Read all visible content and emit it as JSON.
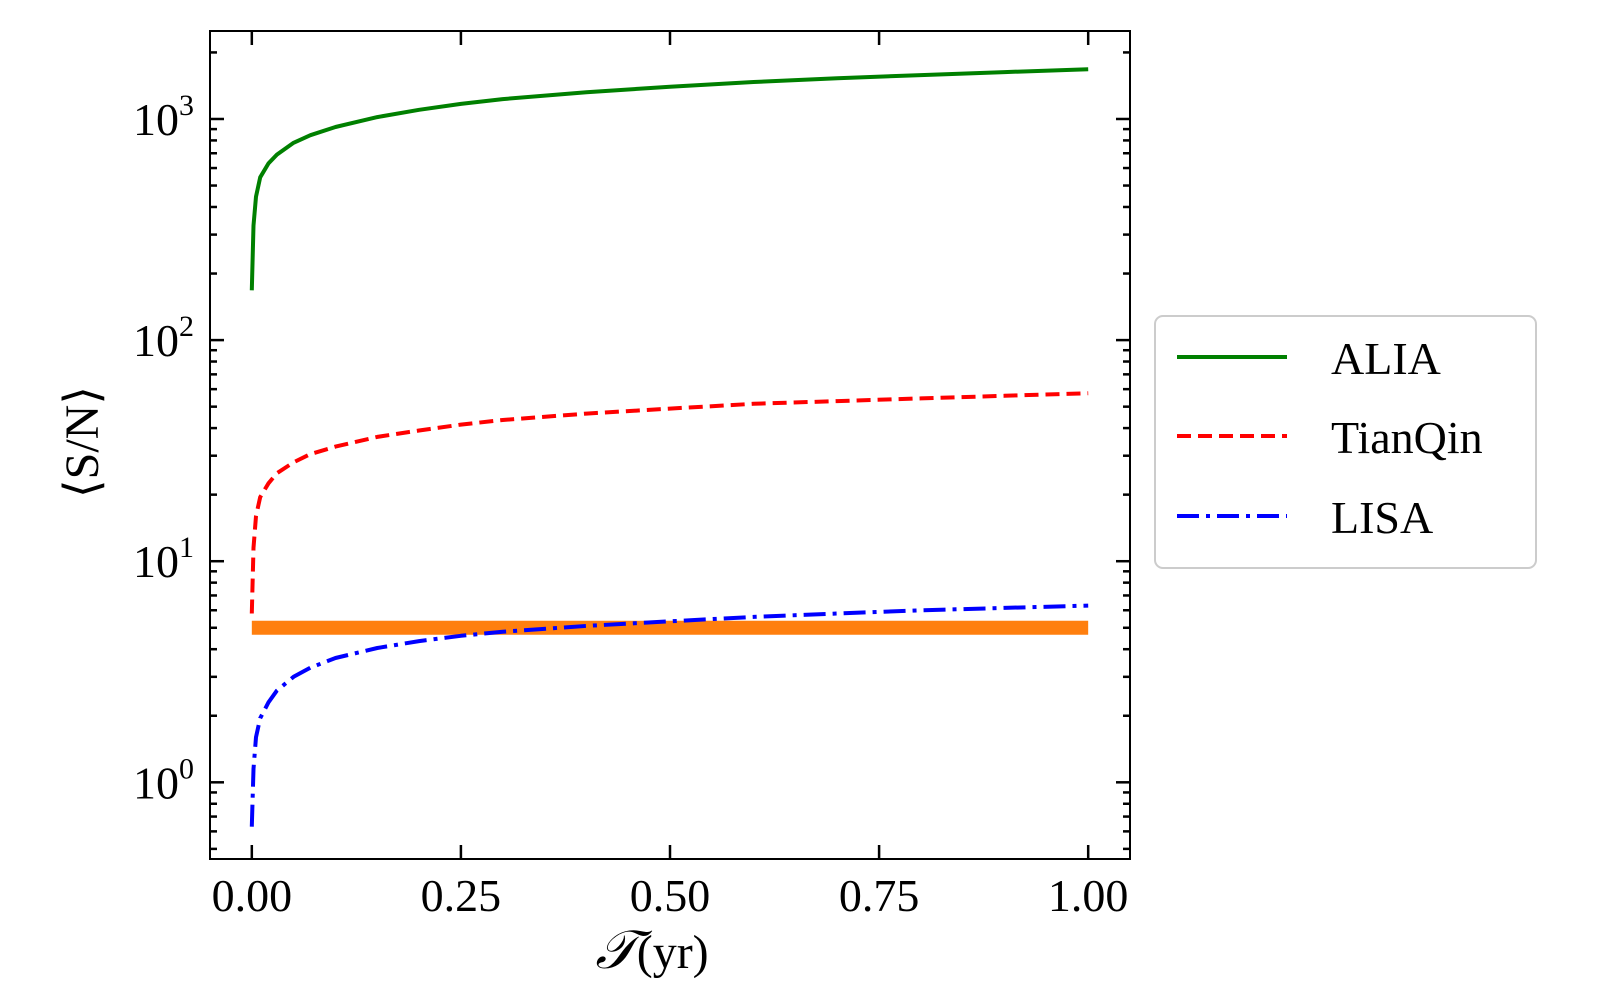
{
  "chart_data": {
    "type": "line",
    "title": "",
    "xlabel": {
      "symbol": "𝒯",
      "unit": "(yr)"
    },
    "ylabel": "⟨S/N⟩",
    "yscale": "log",
    "xlim": [
      -0.05,
      1.05
    ],
    "ylim": [
      0.45,
      2500
    ],
    "xticks": [
      {
        "value": 0.0,
        "label": "0.00"
      },
      {
        "value": 0.25,
        "label": "0.25"
      },
      {
        "value": 0.5,
        "label": "0.50"
      },
      {
        "value": 0.75,
        "label": "0.75"
      },
      {
        "value": 1.0,
        "label": "1.00"
      }
    ],
    "yticks": [
      {
        "value": 1,
        "base": "10",
        "exp": "0"
      },
      {
        "value": 10,
        "base": "10",
        "exp": "1"
      },
      {
        "value": 100,
        "base": "10",
        "exp": "2"
      },
      {
        "value": 1000,
        "base": "10",
        "exp": "3"
      }
    ],
    "grid": false,
    "legend": {
      "placement": "right, outside"
    },
    "series": [
      {
        "name": "ALIA",
        "color": "#008000",
        "style": "solid",
        "x": [
          0.0,
          0.002,
          0.005,
          0.01,
          0.02,
          0.03,
          0.05,
          0.07,
          0.1,
          0.15,
          0.2,
          0.25,
          0.3,
          0.4,
          0.5,
          0.6,
          0.7,
          0.8,
          0.9,
          1.0
        ],
        "y": [
          168,
          330,
          445,
          545,
          630,
          690,
          780,
          845,
          920,
          1020,
          1100,
          1170,
          1230,
          1320,
          1400,
          1470,
          1530,
          1580,
          1630,
          1680
        ]
      },
      {
        "name": "TianQin",
        "color": "#ff0000",
        "style": "dashed",
        "x": [
          0.0,
          0.002,
          0.005,
          0.01,
          0.02,
          0.03,
          0.05,
          0.07,
          0.1,
          0.15,
          0.2,
          0.25,
          0.3,
          0.4,
          0.5,
          0.6,
          0.7,
          0.8,
          0.9,
          1.0
        ],
        "y": [
          5.8,
          11.5,
          16,
          19.5,
          22.5,
          25,
          28,
          30.5,
          33,
          36.5,
          39,
          41.5,
          43.5,
          46.5,
          49,
          51.5,
          53,
          54.5,
          56,
          57.5
        ]
      },
      {
        "name": "LISA",
        "color": "#0000ff",
        "style": "dashdot",
        "x": [
          0.0,
          0.002,
          0.005,
          0.01,
          0.02,
          0.03,
          0.05,
          0.07,
          0.1,
          0.15,
          0.2,
          0.25,
          0.3,
          0.4,
          0.5,
          0.6,
          0.7,
          0.8,
          0.9,
          1.0
        ],
        "y": [
          0.63,
          1.15,
          1.6,
          1.95,
          2.3,
          2.6,
          3.0,
          3.3,
          3.65,
          4.05,
          4.35,
          4.6,
          4.8,
          5.1,
          5.35,
          5.6,
          5.8,
          6.0,
          6.15,
          6.3
        ]
      }
    ],
    "threshold": {
      "color": "#ff7f0e",
      "y": 5,
      "x_range": [
        0.0,
        1.0
      ]
    }
  }
}
